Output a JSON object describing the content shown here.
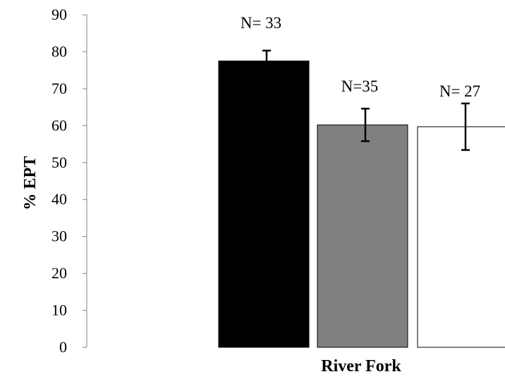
{
  "chart_data": {
    "type": "bar",
    "xlabel": "River Fork",
    "ylabel": "% EPT",
    "ylim": [
      0,
      90
    ],
    "yticks": [
      "0",
      "10",
      "20",
      "30",
      "40",
      "50",
      "60",
      "70",
      "80",
      "90"
    ],
    "grid": false,
    "legend": "none",
    "bars": [
      {
        "value": 77.5,
        "error": 2.8,
        "n_label": "N= 33",
        "color": "#000000"
      },
      {
        "value": 60.2,
        "error": 4.4,
        "n_label": "N=35",
        "color": "#808080"
      },
      {
        "value": 59.7,
        "error": 6.3,
        "n_label": "N= 27",
        "color": "#ffffff"
      }
    ]
  }
}
